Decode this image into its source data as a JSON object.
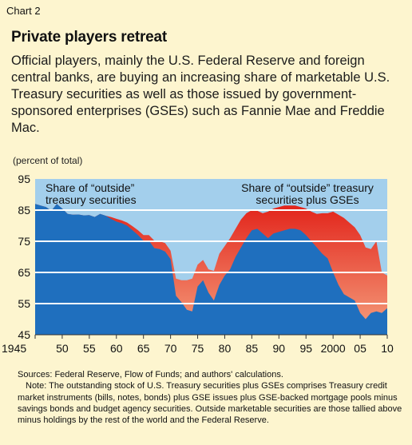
{
  "header": {
    "chart_number": "Chart 2",
    "title": "Private players retreat",
    "subtitle": "Official players, mainly the U.S. Federal Reserve and foreign central banks, are buying an increasing share of marketable U.S. Treasury securities as well as those issued by government-sponsored enterprises (GSEs) such as Fannie Mae and Freddie Mac.",
    "unit_label": "(percent of total)"
  },
  "footer": {
    "sources": "Sources: Federal Reserve, Flow of Funds; and authors' calculations.",
    "note": "Note: The outstanding stock of U.S. Treasury securities plus GSEs comprises Treasury credit market instruments (bills, notes, bonds) plus GSE issues plus GSE-backed mortgage pools minus savings bonds and budget agency securities. Outside marketable securities are those tallied above minus holdings by the rest of the world and the Federal Reserve."
  },
  "colors": {
    "plot_background": "#a3cfec",
    "treasury_area": "#1f6fbe",
    "gse_area_top": "#e2231a",
    "gse_area_bottom": "#f5a07e",
    "gridline": "#ffffff",
    "page_background": "#fdf5cf"
  },
  "chart_data": {
    "type": "area",
    "ylim": [
      45,
      95
    ],
    "yticks": [
      45,
      55,
      65,
      75,
      85,
      95
    ],
    "xlim": [
      1945,
      2010
    ],
    "xticks": [
      {
        "value": 1945,
        "label": "1945"
      },
      {
        "value": 1950,
        "label": "50"
      },
      {
        "value": 1955,
        "label": "55"
      },
      {
        "value": 1960,
        "label": "60"
      },
      {
        "value": 1965,
        "label": "65"
      },
      {
        "value": 1970,
        "label": "70"
      },
      {
        "value": 1975,
        "label": "75"
      },
      {
        "value": 1980,
        "label": "80"
      },
      {
        "value": 1985,
        "label": "85"
      },
      {
        "value": 1990,
        "label": "90"
      },
      {
        "value": 1995,
        "label": "95"
      },
      {
        "value": 2000,
        "label": "2000"
      },
      {
        "value": 2005,
        "label": "05"
      },
      {
        "value": 2010,
        "label": "10"
      }
    ],
    "grid": true,
    "annotations": [
      {
        "lines": [
          "Share of “outside”",
          "treasury securities"
        ]
      },
      {
        "lines": [
          "Share of “outside” treasury",
          "securities plus GSEs"
        ]
      }
    ],
    "x": [
      1945,
      1946,
      1947,
      1948,
      1949,
      1950,
      1951,
      1952,
      1953,
      1954,
      1955,
      1956,
      1957,
      1958,
      1959,
      1960,
      1961,
      1962,
      1963,
      1964,
      1965,
      1966,
      1967,
      1968,
      1969,
      1970,
      1971,
      1972,
      1973,
      1974,
      1975,
      1976,
      1977,
      1978,
      1979,
      1980,
      1981,
      1982,
      1983,
      1984,
      1985,
      1986,
      1987,
      1988,
      1989,
      1990,
      1991,
      1992,
      1993,
      1994,
      1995,
      1996,
      1997,
      1998,
      1999,
      2000,
      2001,
      2002,
      2003,
      2004,
      2005,
      2006,
      2007,
      2008,
      2009,
      2010
    ],
    "series": [
      {
        "name": "Share of “outside” treasury securities",
        "values": [
          87,
          86.5,
          86,
          84.8,
          87,
          85.5,
          83.8,
          83.5,
          83.6,
          83.3,
          83.4,
          82.8,
          83.8,
          83.2,
          82.2,
          81.3,
          80.8,
          80,
          78.5,
          77,
          75.2,
          75.2,
          72.8,
          72.5,
          71.7,
          69.3,
          57.5,
          55.5,
          53,
          52.5,
          60.5,
          62.5,
          58.5,
          56,
          61,
          64,
          66,
          70,
          73,
          76,
          78.5,
          79,
          77.5,
          76,
          77.5,
          78,
          78.5,
          79,
          79,
          78.5,
          77,
          75,
          73,
          71,
          69.5,
          65,
          61,
          58,
          57,
          56,
          52,
          50,
          52,
          52.5,
          52,
          53.5
        ]
      },
      {
        "name": "Share of “outside” treasury securities plus GSEs",
        "values": [
          87,
          86.5,
          86,
          84.8,
          87,
          85.5,
          83.8,
          83.5,
          83.6,
          83.3,
          83.4,
          82.8,
          83.8,
          83.2,
          82.8,
          82.2,
          81.7,
          81,
          79.8,
          78.5,
          77,
          77,
          75.2,
          75,
          74.4,
          72,
          63,
          62.5,
          62.5,
          63,
          67.5,
          69,
          66,
          65.5,
          71,
          73.5,
          76,
          79,
          82,
          84,
          85,
          84.8,
          84,
          84.5,
          85.5,
          86,
          86.5,
          86.5,
          86.5,
          86,
          85.5,
          84.5,
          83.8,
          84,
          84,
          84.5,
          83.5,
          82.5,
          81,
          79.5,
          77,
          73,
          72.5,
          75,
          65,
          64
        ]
      }
    ]
  }
}
